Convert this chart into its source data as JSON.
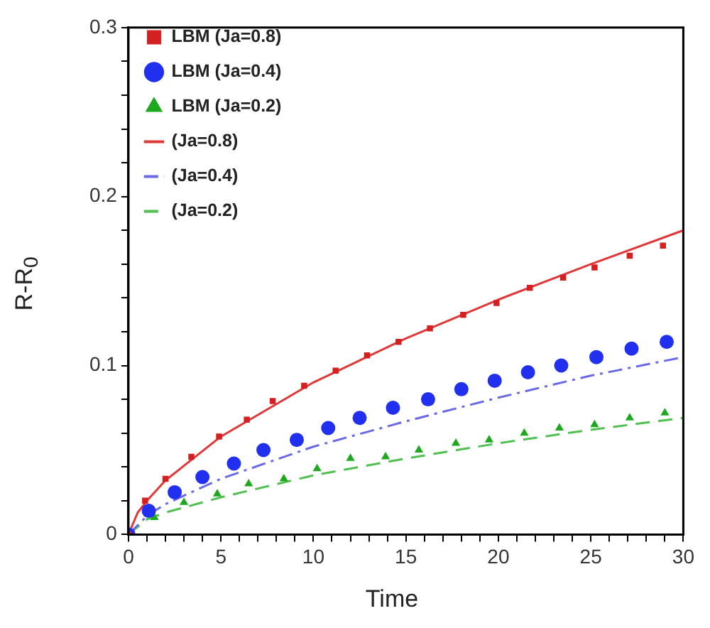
{
  "chart_data": {
    "type": "scatter",
    "xlabel": "Time",
    "ylabel": "R-R$_{0}$",
    "xlim": [
      0,
      30
    ],
    "ylim": [
      0,
      0.3
    ],
    "xticks": [
      0,
      {
        "value": 1,
        "label": null
      },
      {
        "value": 2,
        "label": null
      },
      {
        "value": 3,
        "label": null
      },
      {
        "value": 4,
        "label": null
      },
      5,
      {
        "value": 6,
        "label": null
      },
      {
        "value": 7,
        "label": null
      },
      {
        "value": 8,
        "label": null
      },
      {
        "value": 9,
        "label": null
      },
      10,
      {
        "value": 11,
        "label": null
      },
      {
        "value": 12,
        "label": null
      },
      {
        "value": 13,
        "label": null
      },
      {
        "value": 14,
        "label": null
      },
      15,
      {
        "value": 16,
        "label": null
      },
      {
        "value": 17,
        "label": null
      },
      {
        "value": 18,
        "label": null
      },
      {
        "value": 19,
        "label": null
      },
      20,
      {
        "value": 21,
        "label": null
      },
      {
        "value": 22,
        "label": null
      },
      {
        "value": 23,
        "label": null
      },
      {
        "value": 24,
        "label": null
      },
      25,
      {
        "value": 26,
        "label": null
      },
      {
        "value": 27,
        "label": null
      },
      {
        "value": 28,
        "label": null
      },
      {
        "value": 29,
        "label": null
      },
      30
    ],
    "yticks": [
      0,
      {
        "value": 0.02,
        "label": null
      },
      {
        "value": 0.04,
        "label": null
      },
      {
        "value": 0.06,
        "label": null
      },
      {
        "value": 0.08,
        "label": null
      },
      0.1,
      {
        "value": 0.12,
        "label": null
      },
      {
        "value": 0.14,
        "label": null
      },
      {
        "value": 0.16,
        "label": null
      },
      {
        "value": 0.18,
        "label": null
      },
      0.2,
      {
        "value": 0.22,
        "label": null
      },
      {
        "value": 0.24,
        "label": null
      },
      {
        "value": 0.26,
        "label": null
      },
      {
        "value": 0.28,
        "label": null
      },
      0.3
    ],
    "grid": false,
    "legend": "top left",
    "series": [
      {
        "name": "LBM (Ja=0.8)",
        "marker": "square",
        "color": "#d42020",
        "x": [
          0,
          0.9,
          2.0,
          3.4,
          4.9,
          6.4,
          7.8,
          9.5,
          11.2,
          12.9,
          14.6,
          16.3,
          18.1,
          19.9,
          21.7,
          23.5,
          25.2,
          27.1,
          28.9
        ],
        "values": [
          0,
          0.02,
          0.033,
          0.046,
          0.058,
          0.068,
          0.079,
          0.088,
          0.097,
          0.106,
          0.114,
          0.122,
          0.13,
          0.137,
          0.146,
          0.152,
          0.158,
          0.165,
          0.171
        ]
      },
      {
        "name": "LBM (Ja=0.4)",
        "marker": "circle",
        "color": "#2030ee",
        "x": [
          0,
          1.1,
          2.5,
          4.0,
          5.7,
          7.3,
          9.1,
          10.8,
          12.5,
          14.3,
          16.2,
          18.0,
          19.8,
          21.6,
          23.4,
          25.3,
          27.2,
          29.1
        ],
        "values": [
          0,
          0.014,
          0.025,
          0.034,
          0.042,
          0.05,
          0.056,
          0.063,
          0.069,
          0.075,
          0.08,
          0.086,
          0.091,
          0.096,
          0.1,
          0.105,
          0.11,
          0.114
        ]
      },
      {
        "name": "LBM (Ja=0.2)",
        "marker": "triangle",
        "color": "#1ea81e",
        "x": [
          1.4,
          3.0,
          4.8,
          6.5,
          8.4,
          10.2,
          12.0,
          13.9,
          15.7,
          17.7,
          19.5,
          21.4,
          23.3,
          25.2,
          27.1,
          29.0
        ],
        "values": [
          0.01,
          0.019,
          0.024,
          0.03,
          0.033,
          0.039,
          0.045,
          0.046,
          0.05,
          0.054,
          0.056,
          0.06,
          0.063,
          0.065,
          0.069,
          0.072
        ]
      },
      {
        "name": "(Ja=0.8)",
        "type": "line",
        "line_style": "solid",
        "color": "#e03838",
        "x": [
          0,
          0.5,
          1,
          2,
          5,
          10,
          15,
          20,
          25,
          30
        ],
        "values": [
          0,
          0.013,
          0.02,
          0.032,
          0.058,
          0.09,
          0.116,
          0.139,
          0.16,
          0.18
        ]
      },
      {
        "name": "(Ja=0.4)",
        "type": "line",
        "line_style": "dashdot",
        "color": "#6a6ae8",
        "x": [
          0,
          1,
          2,
          5,
          10,
          15,
          20,
          25,
          30
        ],
        "values": [
          0,
          0.011,
          0.018,
          0.033,
          0.052,
          0.067,
          0.081,
          0.094,
          0.105
        ]
      },
      {
        "name": "(Ja=0.2)",
        "type": "line",
        "line_style": "dashed",
        "color": "#50c050",
        "x": [
          0,
          1,
          2,
          5,
          10,
          15,
          20,
          25,
          30
        ],
        "values": [
          0,
          0.009,
          0.013,
          0.022,
          0.035,
          0.045,
          0.054,
          0.062,
          0.069
        ]
      }
    ]
  }
}
